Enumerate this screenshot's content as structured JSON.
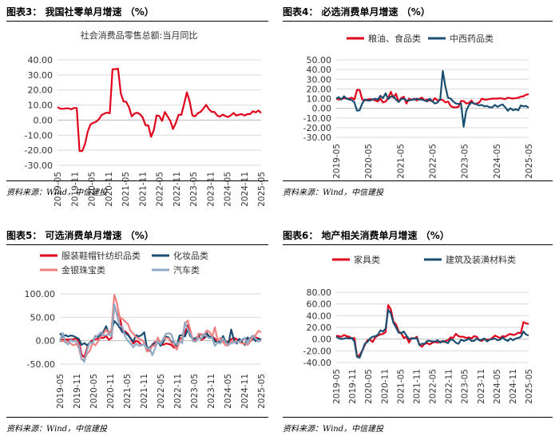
{
  "panels": [
    {
      "title": "图表3：  我国社零单月增速 （%）",
      "source": "资料来源：Wind，中信建投",
      "chart_data": {
        "type": "line",
        "title": "社会消费品零售总额:当月同比",
        "ylim": [
          -30,
          40
        ],
        "yticks": [
          "40.00",
          "30.00",
          "20.00",
          "10.00",
          "0.00",
          "-10.00",
          "-20.00",
          "-30.00"
        ],
        "xticks": [
          "2019-05",
          "2019-11",
          "2020-05",
          "2020-11",
          "2021-05",
          "2021-11",
          "2022-05",
          "2022-11",
          "2023-05",
          "2023-11",
          "2024-05",
          "2024-11",
          "2025-05"
        ],
        "grid": true,
        "legend": "none",
        "series": [
          {
            "name": "",
            "color": "#e1001b",
            "values": [
              8.6,
              7.6,
              7.5,
              7.8,
              7.8,
              7.2,
              8.0,
              8.0,
              -20.5,
              -20.5,
              -15.8,
              -7.5,
              -2.8,
              -1.8,
              -1.1,
              0.5,
              3.3,
              4.3,
              5.0,
              4.6,
              33.8,
              33.8,
              34.2,
              17.7,
              12.4,
              12.1,
              8.5,
              2.5,
              4.4,
              4.9,
              3.9,
              1.7,
              -3.5,
              -3.5,
              -11.1,
              -6.7,
              3.1,
              2.7,
              -0.5,
              5.4,
              2.5,
              -0.5,
              -5.9,
              -1.8,
              3.5,
              3.5,
              10.6,
              18.4,
              12.7,
              3.1,
              2.5,
              4.6,
              5.5,
              7.6,
              10.1,
              7.4,
              5.5,
              5.5,
              3.1,
              2.3,
              3.7,
              2.7,
              2.1,
              3.2,
              4.8,
              3.0,
              3.7,
              4.0,
              3.0,
              4.0,
              4.0,
              5.9,
              5.1,
              6.4,
              4.8
            ]
          }
        ]
      }
    },
    {
      "title": "图表4：  必选消费单月增速 （%）",
      "source": "资料来源：Wind，中信建投",
      "chart_data": {
        "type": "line",
        "ylim": [
          -30,
          50
        ],
        "yticks": [
          "50.00",
          "40.00",
          "30.00",
          "20.00",
          "10.00",
          "0.00",
          "-10.00",
          "-20.00",
          "-30.00"
        ],
        "xticks": [
          "2019-05",
          "2020-05",
          "2021-05",
          "2022-05",
          "2023-05",
          "2024-05",
          "2025-05"
        ],
        "grid": true,
        "legend": "top",
        "series": [
          {
            "name": "粮油、食品类",
            "color": "#e1001b",
            "values": [
              10.0,
              9.0,
              9.5,
              10.5,
              10.0,
              10.0,
              11.0,
              9.0,
              19.0,
              19.0,
              9.0,
              8.0,
              9.0,
              9.5,
              9.0,
              8.0,
              7.0,
              10.0,
              6.0,
              7.0,
              10.5,
              17.0,
              11.0,
              15.0,
              6.5,
              10.5,
              12.0,
              5.0,
              10.0,
              8.5,
              10.0,
              8.0,
              10.0,
              11.0,
              8.0,
              9.0,
              8.0,
              7.5,
              10.5,
              8.0,
              9.0,
              8.5,
              6.0,
              7.0,
              2.5,
              1.0,
              1.0,
              1.5,
              7.5,
              7.5,
              5.0,
              5.5,
              8.0,
              4.5,
              5.0,
              6.0,
              10.0,
              9.0,
              9.0,
              9.5,
              10.0,
              10.0,
              10.0,
              10.5,
              10.0,
              9.5,
              11.0,
              10.5,
              10.0,
              10.5,
              11.0,
              12.0,
              12.5,
              14.0,
              14.5
            ]
          },
          {
            "name": "中西药品类",
            "color": "#1b4f72",
            "values": [
              10.0,
              11.5,
              9.0,
              12.5,
              10.0,
              9.0,
              8.5,
              6.0,
              -2.5,
              -2.0,
              5.0,
              9.0,
              8.0,
              8.0,
              9.0,
              10.0,
              9.0,
              13.0,
              10.5,
              15.5,
              9.5,
              12.0,
              12.5,
              9.0,
              6.5,
              9.5,
              10.0,
              8.0,
              8.0,
              9.0,
              9.0,
              10.0,
              9.0,
              9.0,
              8.0,
              7.0,
              10.0,
              7.0,
              5.0,
              6.0,
              9.5,
              38.5,
              22.0,
              11.0,
              10.0,
              7.0,
              5.0,
              4.5,
              5.0,
              -19.0,
              -2.5,
              3.0,
              6.0,
              5.0,
              4.0,
              3.0,
              3.5,
              2.0,
              2.5,
              1.0,
              1.0,
              3.5,
              1.5,
              3.0,
              4.0,
              1.0,
              -2.5,
              0.0,
              -2.0,
              -1.0,
              -2.0,
              3.0,
              2.0,
              2.5,
              0.5
            ]
          }
        ]
      }
    },
    {
      "title": "图表5：  可选消费单月增速 （%）",
      "source": "资料来源：Wind，中信建投",
      "chart_data": {
        "type": "line",
        "ylim": [
          -50,
          100
        ],
        "yticks": [
          "100.00",
          "50.00",
          "0.00",
          "-50.00"
        ],
        "xticks": [
          "2019-05",
          "2019-11",
          "2020-05",
          "2020-11",
          "2021-05",
          "2021-11",
          "2022-05",
          "2022-11",
          "2023-05",
          "2023-11",
          "2024-05",
          "2024-11",
          "2025-05"
        ],
        "grid": true,
        "legend": "top",
        "series": [
          {
            "name": "服装鞋帽针纺织品类",
            "color": "#e1001b",
            "values": [
              5,
              2,
              3,
              2,
              3,
              3,
              5,
              -1,
              -30,
              -35,
              -15,
              -4,
              1,
              3,
              4,
              6,
              6,
              10,
              2,
              6,
              76,
              57,
              52,
              21,
              20,
              15,
              5,
              -6,
              0,
              -3,
              -10,
              -7,
              -18,
              -22,
              -8,
              -3,
              -4,
              -7,
              -9,
              -6,
              -7,
              -9,
              -15,
              -10,
              6,
              5,
              17,
              33,
              13,
              1,
              1,
              10,
              2,
              5,
              11,
              8,
              9,
              4,
              -2,
              -5,
              1,
              -4,
              -1,
              3,
              6,
              3,
              0,
              2,
              5,
              4,
              6,
              8,
              7,
              5,
              2
            ]
          },
          {
            "name": "化妆品类",
            "color": "#1b4f72",
            "values": [
              16,
              8,
              12,
              9,
              11,
              10,
              7,
              4,
              -9,
              -5,
              -10,
              -4,
              -3,
              10,
              8,
              12,
              19,
              31,
              14,
              22,
              42,
              36,
              28,
              18,
              17,
              12,
              5,
              -2,
              12,
              9,
              12,
              18,
              -15,
              -15,
              -9,
              -4,
              0,
              -11,
              -3,
              9,
              7,
              -3,
              -3,
              -12,
              11,
              12,
              9,
              24,
              9,
              5,
              5,
              11,
              14,
              7,
              17,
              8,
              10,
              -2,
              -2,
              -3,
              10,
              -2,
              -7,
              24,
              2,
              -6,
              4,
              -3,
              -9,
              7,
              -2,
              5,
              -1,
              4,
              3
            ]
          },
          {
            "name": "金银珠宝类",
            "color": "#f08080",
            "values": [
              -2,
              0,
              -3,
              -2,
              -6,
              -10,
              -6,
              -15,
              -40,
              -42,
              -28,
              -21,
              -5,
              -10,
              -2,
              8,
              15,
              24,
              14,
              25,
              98,
              80,
              48,
              47,
              41,
              36,
              21,
              15,
              8,
              4,
              2,
              -4,
              -23,
              -20,
              -11,
              -11,
              7,
              -6,
              3,
              6,
              5,
              -5,
              -10,
              -19,
              -1,
              6,
              37,
              43,
              22,
              -1,
              -2,
              15,
              14,
              11,
              22,
              19,
              9,
              29,
              0,
              6,
              -3,
              -10,
              -10,
              -1,
              -2,
              -2,
              -3,
              -6,
              -6,
              -9,
              -2,
              9,
              12,
              21,
              18
            ]
          },
          {
            "name": "汽车类",
            "color": "#8fa9c4",
            "values": [
              -2,
              17,
              -3,
              -8,
              2,
              -2,
              0,
              -10,
              -37,
              -45,
              -19,
              -4,
              -5,
              9,
              11,
              18,
              11,
              12,
              14,
              9,
              78,
              55,
              32,
              29,
              9,
              0,
              -6,
              -14,
              -6,
              -11,
              -9,
              -8,
              -16,
              -16,
              -31,
              -16,
              -1,
              -7,
              4,
              15,
              16,
              14,
              -4,
              -8,
              -2,
              -5,
              39,
              24,
              14,
              -1,
              -1,
              6,
              4,
              15,
              9,
              5,
              7,
              -11,
              -4,
              -6,
              5,
              -4,
              -9,
              -5,
              -4,
              -3,
              -2,
              3,
              6,
              -6,
              7,
              11,
              4,
              -2,
              1
            ]
          }
        ]
      }
    },
    {
      "title": "图表6：  地产相关消费单月增速 （%）",
      "source": "资料来源：Wind，中信建投",
      "chart_data": {
        "type": "line",
        "ylim": [
          -40,
          80
        ],
        "yticks": [
          "80.00",
          "60.00",
          "40.00",
          "20.00",
          "0.00",
          "-20.00",
          "-40.00"
        ],
        "xticks": [
          "2019-05",
          "2019-11",
          "2020-05",
          "2020-11",
          "2021-05",
          "2021-11",
          "2022-05",
          "2022-11",
          "2023-05",
          "2023-11",
          "2024-05",
          "2024-11",
          "2025-05"
        ],
        "grid": true,
        "legend": "top",
        "series": [
          {
            "name": "家具类",
            "color": "#e1001b",
            "values": [
              6,
              5,
              4,
              7,
              5,
              4,
              1,
              2,
              -30,
              -27,
              -20,
              -10,
              -2,
              -1,
              -5,
              3,
              6,
              8,
              9,
              12,
              58,
              51,
              30,
              25,
              13,
              10,
              2,
              4,
              -6,
              2,
              1,
              4,
              -10,
              -13,
              -8,
              -7,
              -9,
              -6,
              -5,
              -6,
              -4,
              -5,
              -3,
              -2,
              3,
              2,
              9,
              5,
              4,
              4,
              2,
              3,
              1,
              5,
              4,
              -2,
              -3,
              0,
              -1,
              -1,
              2,
              6,
              4,
              2,
              5,
              4,
              7,
              9,
              7,
              8,
              11,
              10,
              29,
              27,
              26
            ]
          },
          {
            "name": "建筑及装潢材料类",
            "color": "#1b4f72",
            "values": [
              4,
              2,
              0,
              1,
              2,
              1,
              2,
              -4,
              -30,
              -32,
              -20,
              -8,
              -5,
              1,
              4,
              5,
              7,
              15,
              13,
              18,
              50,
              44,
              28,
              20,
              11,
              10,
              13,
              6,
              0,
              1,
              1,
              2,
              -10,
              -8,
              -8,
              -3,
              -3,
              -4,
              -4,
              -2,
              -6,
              -3,
              -5,
              -7,
              0,
              -2,
              -6,
              -8,
              -1,
              -3,
              -2,
              1,
              -3,
              -3,
              1,
              -2,
              -1,
              1,
              -4,
              -1,
              0,
              1,
              -2,
              -1,
              3,
              -1,
              -3,
              1,
              -2,
              1,
              2,
              4,
              13,
              8,
              6
            ]
          }
        ]
      }
    }
  ]
}
